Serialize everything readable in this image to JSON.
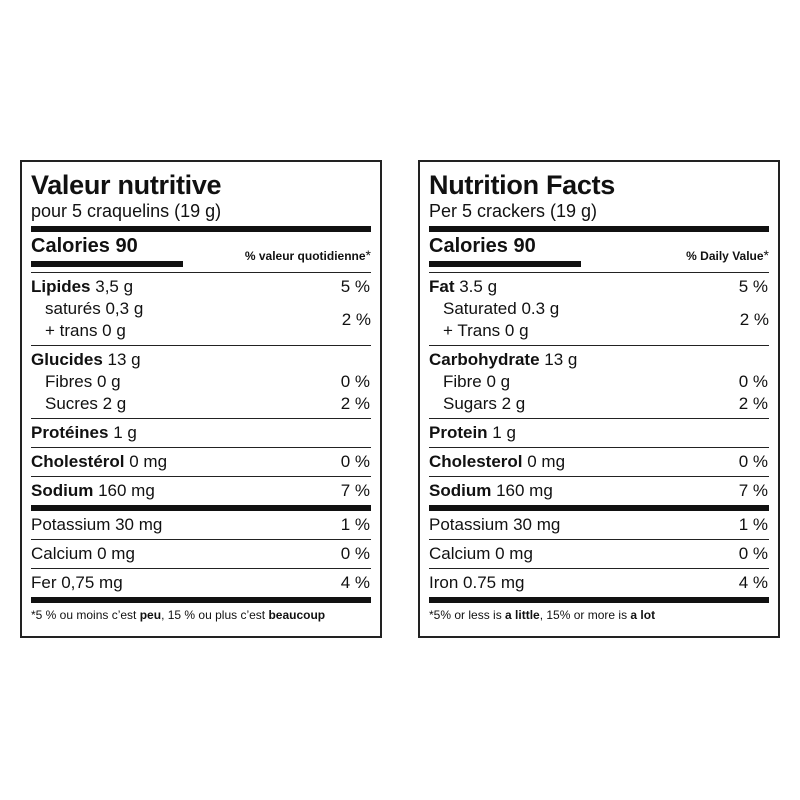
{
  "french": {
    "title": "Valeur nutritive",
    "serving": "pour 5 craquelins (19 g)",
    "calories": "Calories 90",
    "dv_header": "% valeur quotidienne",
    "dv_star": "*",
    "fat_label": "Lipides",
    "fat_amount": " 3,5 g",
    "fat_dv": "5 %",
    "sat_label": "saturés 0,3 g",
    "trans_label": "+ trans 0 g",
    "sat_trans_dv": "2 %",
    "carb_label": "Glucides",
    "carb_amount": " 13 g",
    "fibre_label": "Fibres 0 g",
    "fibre_dv": "0 %",
    "sugar_label": "Sucres 2 g",
    "sugar_dv": "2 %",
    "protein_label": "Protéines",
    "protein_amount": " 1 g",
    "chol_label": "Cholestérol",
    "chol_amount": " 0 mg",
    "chol_dv": "0 %",
    "sodium_label": "Sodium",
    "sodium_amount": " 160 mg",
    "sodium_dv": "7 %",
    "potassium_label": "Potassium 30 mg",
    "potassium_dv": "1 %",
    "calcium_label": "Calcium 0 mg",
    "calcium_dv": "0 %",
    "iron_label": "Fer 0,75 mg",
    "iron_dv": "4 %",
    "foot_a": "*5 % ou moins c’est ",
    "foot_b": "peu",
    "foot_c": ", 15 % ou plus c’est ",
    "foot_d": "beaucoup"
  },
  "english": {
    "title": "Nutrition Facts",
    "serving": "Per 5 crackers (19 g)",
    "calories": "Calories 90",
    "dv_header": "% Daily Value",
    "dv_star": "*",
    "fat_label": "Fat",
    "fat_amount": " 3.5 g",
    "fat_dv": "5 %",
    "sat_label": "Saturated 0.3 g",
    "trans_label": "+ Trans 0 g",
    "sat_trans_dv": "2 %",
    "carb_label": "Carbohydrate",
    "carb_amount": " 13 g",
    "fibre_label": "Fibre 0 g",
    "fibre_dv": "0 %",
    "sugar_label": "Sugars 2 g",
    "sugar_dv": "2 %",
    "protein_label": "Protein",
    "protein_amount": " 1 g",
    "chol_label": "Cholesterol",
    "chol_amount": " 0 mg",
    "chol_dv": "0 %",
    "sodium_label": "Sodium",
    "sodium_amount": " 160 mg",
    "sodium_dv": "7 %",
    "potassium_label": "Potassium 30 mg",
    "potassium_dv": "1 %",
    "calcium_label": "Calcium 0 mg",
    "calcium_dv": "0 %",
    "iron_label": "Iron 0.75 mg",
    "iron_dv": "4 %",
    "foot_a": "*5% or less is ",
    "foot_b": "a little",
    "foot_c": ", 15% or more is ",
    "foot_d": "a lot"
  }
}
